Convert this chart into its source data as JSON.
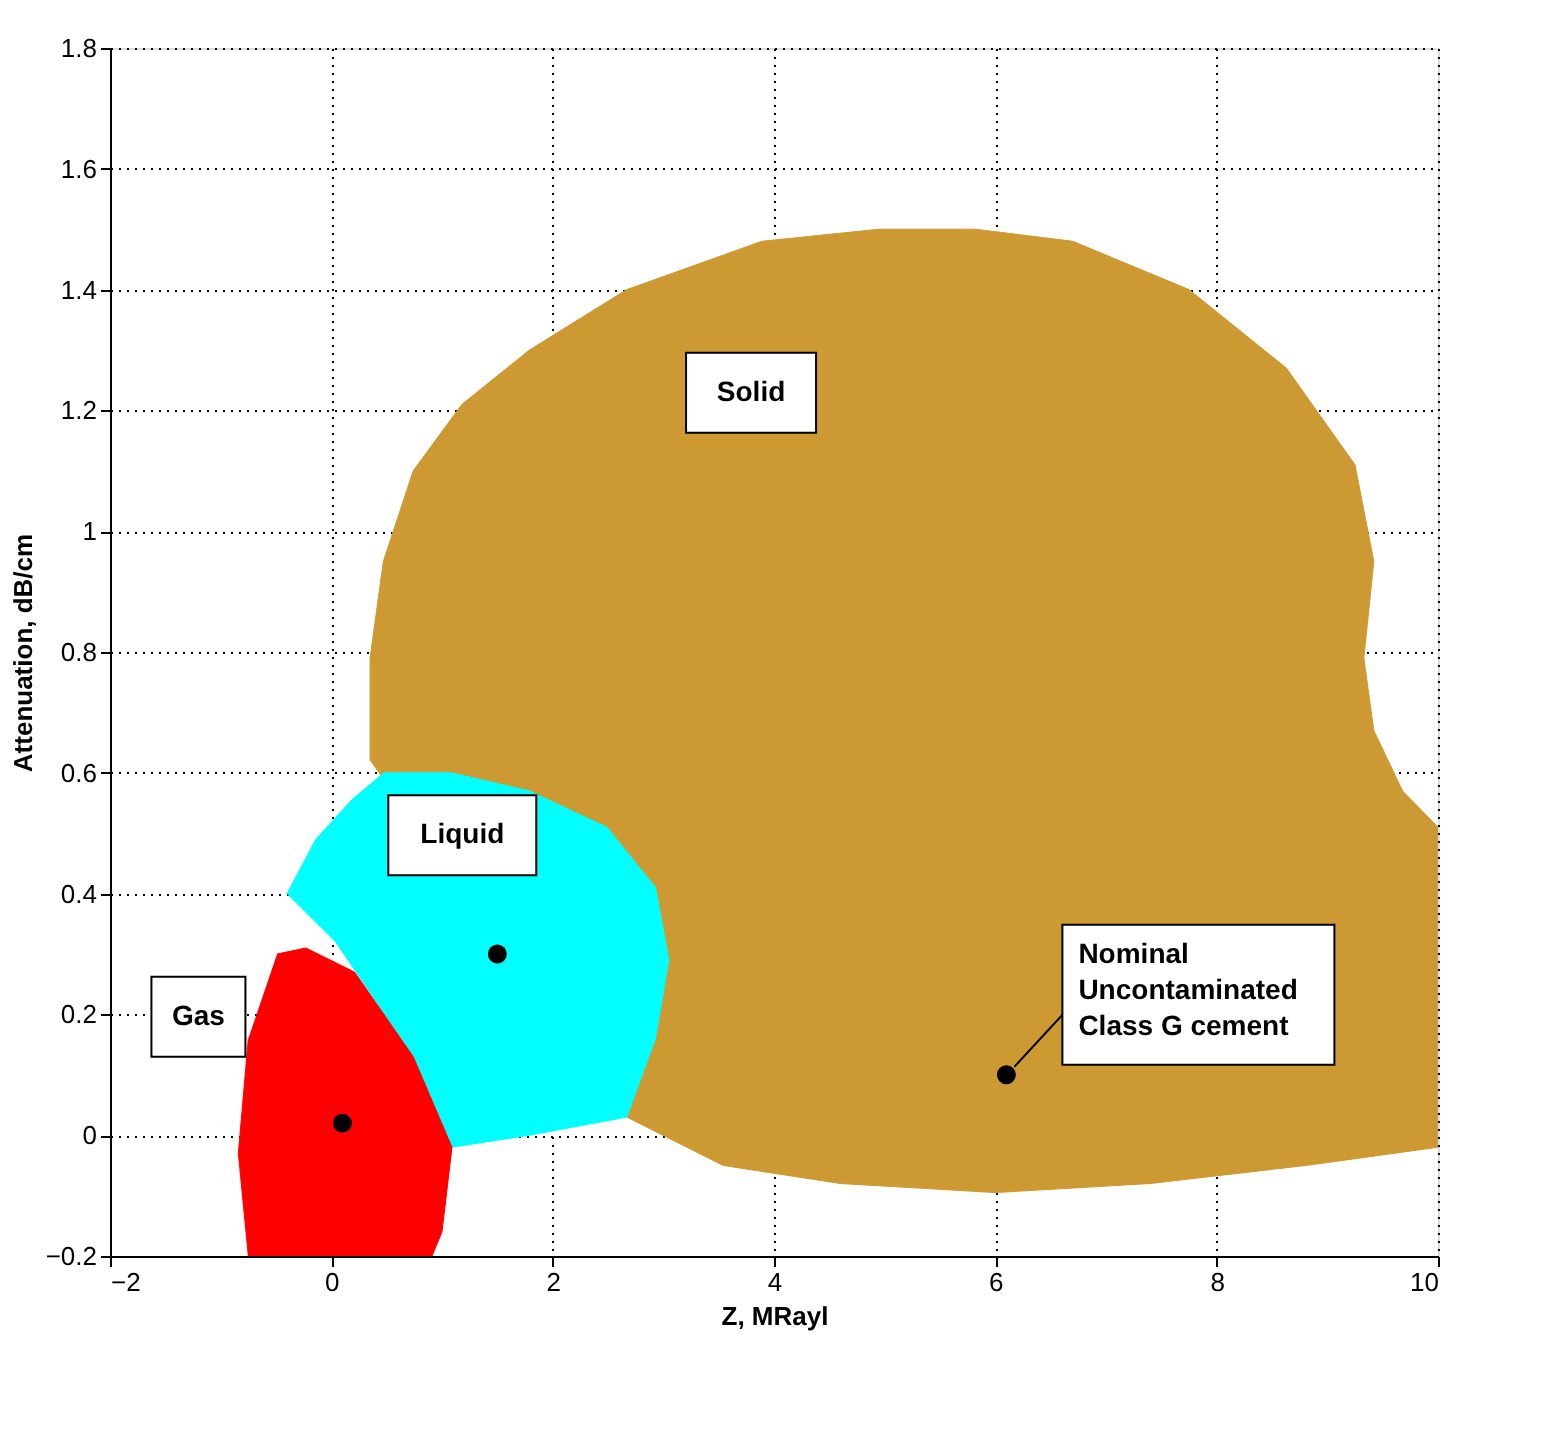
{
  "chart_data": {
    "type": "area",
    "xlabel": "Z, MRayl",
    "ylabel": "Attenuation, dB/cm",
    "xlim": [
      -2,
      10
    ],
    "xticks": [
      -2,
      0,
      2,
      4,
      6,
      8,
      10
    ],
    "ylim": [
      -0.2,
      1.8
    ],
    "yticks": [
      -0.2,
      0,
      0.2,
      0.4,
      0.6,
      0.8,
      1,
      1.2,
      1.4,
      1.6,
      1.8
    ],
    "grid": true,
    "line_style": "dotted",
    "series": [
      {
        "name": "Solid",
        "color": "#cc9933",
        "x": [
          0.35,
          0.35,
          0.47,
          0.74,
          1.18,
          1.79,
          2.67,
          3.89,
          4.95,
          5.82,
          6.7,
          7.75,
          8.63,
          9.25,
          9.42,
          9.33,
          9.42,
          9.68,
          10,
          10,
          8.81,
          7.4,
          6.0,
          4.6,
          3.54,
          2.67
        ],
        "values": [
          0.62,
          0.79,
          0.95,
          1.1,
          1.21,
          1.3,
          1.4,
          1.48,
          1.5,
          1.5,
          1.48,
          1.4,
          1.27,
          1.11,
          0.95,
          0.79,
          0.67,
          0.57,
          0.51,
          -0.02,
          -0.05,
          -0.08,
          -0.095,
          -0.08,
          -0.05,
          0.03
        ]
      },
      {
        "name": "Liquid",
        "color": "#00ffff",
        "x": [
          0.47,
          1.09,
          1.79,
          2.49,
          2.93,
          3.05,
          2.93,
          2.67,
          1.79,
          1.09,
          0.74,
          0.04,
          -0.4,
          -0.14,
          0.21
        ],
        "values": [
          0.6,
          0.6,
          0.57,
          0.51,
          0.41,
          0.29,
          0.16,
          0.03,
          0.0,
          -0.02,
          0.13,
          0.32,
          0.4,
          0.49,
          0.56
        ]
      },
      {
        "name": "Gas",
        "color": "#ff0000",
        "x": [
          -0.49,
          -0.23,
          0.21,
          0.74,
          1.09,
          1.0,
          0.91,
          -0.75,
          -0.84,
          -0.75
        ],
        "values": [
          0.3,
          0.31,
          0.27,
          0.13,
          -0.02,
          -0.16,
          -0.2,
          -0.2,
          -0.03,
          0.16
        ]
      },
      {
        "type": "scatter",
        "color": "#000000",
        "marker": "circle",
        "x": [
          0.1,
          1.5,
          6.1
        ],
        "values": [
          0.02,
          0.3,
          0.1
        ]
      }
    ],
    "annotations": [
      {
        "text": "Nominal\nUncontaminated\nClass G cement",
        "x": 6.1,
        "y": 0.1
      }
    ]
  }
}
